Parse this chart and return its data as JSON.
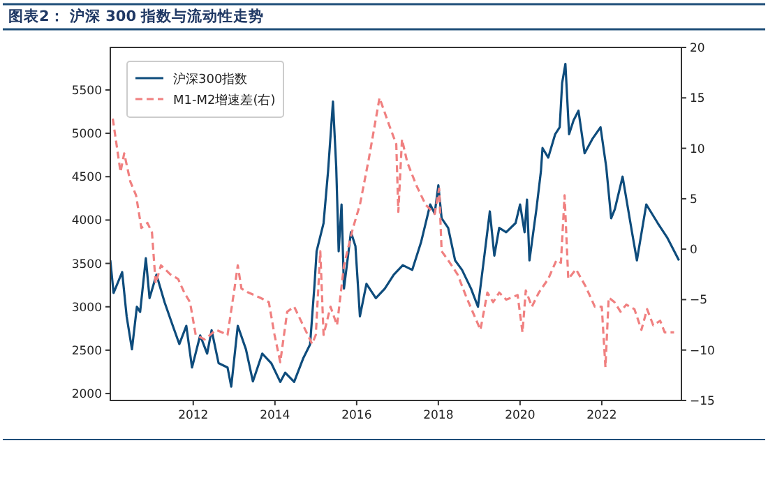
{
  "chart_data": {
    "type": "line",
    "title": "图表2： 沪深 300 指数与流动性走势",
    "xlim": [
      2009.97,
      2023.95
    ],
    "xticks": [
      2012,
      2014,
      2016,
      2018,
      2020,
      2022
    ],
    "ylim": [
      1920,
      5990
    ],
    "yticks": [
      2000,
      2500,
      3000,
      3500,
      4000,
      4500,
      5000,
      5500
    ],
    "y2lim": [
      -15,
      20
    ],
    "y2ticks": [
      -15,
      -10,
      -5,
      0,
      5,
      10,
      15,
      20
    ],
    "legend": "top left",
    "grid": false,
    "series": [
      {
        "name": "沪深300指数",
        "color": "#0e4c7c",
        "line_style": "solid",
        "x": [
          2009.97,
          2010.05,
          2010.26,
          2010.37,
          2010.5,
          2010.62,
          2010.7,
          2010.84,
          2010.93,
          2011.1,
          2011.3,
          2011.5,
          2011.66,
          2011.83,
          2011.97,
          2012.17,
          2012.34,
          2012.45,
          2012.62,
          2012.84,
          2012.93,
          2013.09,
          2013.29,
          2013.46,
          2013.69,
          2013.91,
          2014.13,
          2014.25,
          2014.47,
          2014.69,
          2014.86,
          2014.97,
          2015.02,
          2015.19,
          2015.3,
          2015.42,
          2015.5,
          2015.56,
          2015.63,
          2015.69,
          2015.86,
          2015.97,
          2016.08,
          2016.24,
          2016.47,
          2016.69,
          2016.91,
          2017.13,
          2017.36,
          2017.58,
          2017.8,
          2017.91,
          2018.0,
          2018.08,
          2018.24,
          2018.41,
          2018.58,
          2018.8,
          2018.97,
          2019.14,
          2019.26,
          2019.37,
          2019.49,
          2019.66,
          2019.89,
          2020.0,
          2020.11,
          2020.17,
          2020.23,
          2020.4,
          2020.51,
          2020.55,
          2020.69,
          2020.86,
          2020.97,
          2021.03,
          2021.11,
          2021.2,
          2021.31,
          2021.43,
          2021.58,
          2021.77,
          2021.97,
          2022.11,
          2022.23,
          2022.32,
          2022.51,
          2022.74,
          2022.86,
          2023.09,
          2023.37,
          2023.6,
          2023.71,
          2023.89
        ],
        "values": [
          3535,
          3160,
          3400,
          2890,
          2510,
          3000,
          2940,
          3560,
          3100,
          3370,
          3050,
          2780,
          2570,
          2780,
          2300,
          2670,
          2460,
          2730,
          2350,
          2300,
          2080,
          2780,
          2510,
          2140,
          2460,
          2350,
          2134,
          2240,
          2134,
          2404,
          2565,
          3265,
          3640,
          3965,
          4560,
          5365,
          4610,
          3640,
          4180,
          3210,
          3860,
          3700,
          2890,
          3265,
          3100,
          3210,
          3370,
          3480,
          3425,
          3750,
          4180,
          4075,
          4400,
          4020,
          3910,
          3535,
          3425,
          3210,
          3000,
          3640,
          4100,
          3590,
          3910,
          3860,
          3965,
          4180,
          3860,
          4235,
          3535,
          4125,
          4560,
          4830,
          4720,
          4990,
          5070,
          5580,
          5800,
          4990,
          5150,
          5260,
          4770,
          4935,
          5070,
          4610,
          4020,
          4125,
          4500,
          3860,
          3535,
          4180,
          3965,
          3800,
          3700,
          3535
        ]
      },
      {
        "name": "M1-M2增速差(右)",
        "color": "#f08080",
        "line_style": "dashed",
        "axis": "y2",
        "x": [
          2010.03,
          2010.22,
          2010.31,
          2010.46,
          2010.6,
          2010.73,
          2010.88,
          2010.99,
          2011.08,
          2011.21,
          2011.44,
          2011.63,
          2011.78,
          2011.92,
          2012.06,
          2012.28,
          2012.56,
          2012.84,
          2013.01,
          2013.09,
          2013.18,
          2013.35,
          2013.63,
          2013.85,
          2013.99,
          2014.13,
          2014.3,
          2014.47,
          2014.69,
          2014.91,
          2015.0,
          2015.11,
          2015.19,
          2015.36,
          2015.52,
          2015.69,
          2015.91,
          2016.08,
          2016.3,
          2016.56,
          2016.8,
          2016.97,
          2017.02,
          2017.11,
          2017.24,
          2017.47,
          2017.69,
          2017.91,
          2018.02,
          2018.08,
          2018.24,
          2018.47,
          2018.69,
          2019.03,
          2019.2,
          2019.34,
          2019.49,
          2019.66,
          2019.94,
          2020.06,
          2020.14,
          2020.29,
          2020.46,
          2020.69,
          2020.89,
          2021.0,
          2021.09,
          2021.18,
          2021.37,
          2021.6,
          2021.83,
          2022.0,
          2022.09,
          2022.17,
          2022.31,
          2022.46,
          2022.6,
          2022.8,
          2022.97,
          2023.11,
          2023.26,
          2023.43,
          2023.54,
          2023.77
        ],
        "values": [
          12.95,
          7.65,
          9.5,
          6.7,
          5.35,
          2.1,
          2.6,
          1.65,
          -3.4,
          -1.6,
          -2.5,
          -2.95,
          -4.3,
          -5.25,
          -8.5,
          -8.95,
          -8.0,
          -8.5,
          -3.9,
          -1.6,
          -3.9,
          -4.3,
          -4.8,
          -5.25,
          -8.5,
          -11.2,
          -6.2,
          -5.7,
          -7.55,
          -9.4,
          -8.5,
          -0.2,
          -8.5,
          -5.7,
          -7.55,
          -1.6,
          2.1,
          4.4,
          9.0,
          15.0,
          12.25,
          10.4,
          3.7,
          10.9,
          8.6,
          6.25,
          4.4,
          3.5,
          6.0,
          -0.2,
          -1.1,
          -2.5,
          -4.8,
          -8.0,
          -4.3,
          -5.25,
          -4.3,
          -5.0,
          -4.55,
          -8.25,
          -4.1,
          -5.7,
          -4.3,
          -2.95,
          -1.1,
          -1.35,
          5.35,
          -2.95,
          -2.0,
          -3.65,
          -5.7,
          -5.7,
          -11.7,
          -4.8,
          -5.25,
          -6.2,
          -5.5,
          -5.95,
          -8.0,
          -5.95,
          -7.55,
          -7.1,
          -8.25,
          -8.25
        ]
      }
    ]
  }
}
